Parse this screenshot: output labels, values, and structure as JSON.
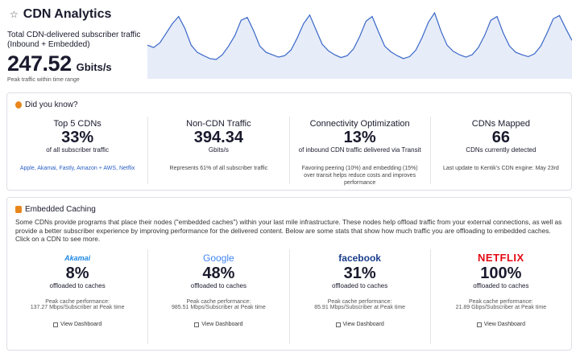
{
  "header": {
    "title": "CDN Analytics"
  },
  "summary": {
    "label": "Total CDN-delivered subscriber traffic",
    "sublabel": "(Inbound + Embedded)",
    "value": "247.52",
    "unit": "Gbits/s",
    "note": "Peak traffic within time range",
    "sparkline": [
      180,
      175,
      185,
      205,
      225,
      240,
      215,
      180,
      165,
      158,
      152,
      150,
      160,
      178,
      200,
      232,
      238,
      210,
      178,
      165,
      160,
      155,
      158,
      170,
      195,
      225,
      243,
      212,
      182,
      168,
      160,
      154,
      158,
      172,
      198,
      230,
      240,
      208,
      178,
      166,
      158,
      152,
      156,
      170,
      196,
      228,
      247.52,
      210,
      180,
      167,
      160,
      155,
      160,
      175,
      200,
      232,
      240,
      205,
      178,
      165,
      160,
      156,
      162,
      178,
      205,
      235,
      242,
      215,
      190
    ]
  },
  "did_you_know": {
    "title": "Did you know?",
    "cards": [
      {
        "title": "Top 5 CDNs",
        "value": "33%",
        "caption": "of all subscriber traffic",
        "detail": "Apple, Akamai, Fastly, Amazon + AWS, Netflix"
      },
      {
        "title": "Non-CDN Traffic",
        "value": "394.34",
        "caption": "Gbits/s",
        "detail": "Represents 61% of all subscriber traffic"
      },
      {
        "title": "Connectivity Optimization",
        "value": "13%",
        "caption": "of inbound CDN traffic delivered via Transit",
        "detail": "Favoring peering (10%) and embedding (15%) over transit helps reduce costs and improves performance"
      },
      {
        "title": "CDNs Mapped",
        "value": "66",
        "caption": "CDNs currently detected",
        "detail": "Last update to Kentik's CDN engine: May 23rd"
      }
    ]
  },
  "embedded": {
    "title": "Embedded Caching",
    "description": "Some CDNs provide programs that place their nodes (\"embedded caches\") within your last mile infrastructure. These nodes help offload traffic from your external connections, as well as provide a better subscriber experience by improving performance for the delivered content. Below are some stats that show how much traffic you are offloading to embedded caches. Click on a CDN to see more.",
    "cdns": [
      {
        "name": "Akamai",
        "value": "8%",
        "caption": "offloaded to caches",
        "perf_label": "Peak cache performance:",
        "perf": "137.27 Mbps/Subscriber at Peak time",
        "action": "View Dashboard"
      },
      {
        "name": "Google",
        "value": "48%",
        "caption": "offloaded to caches",
        "perf_label": "Peak cache performance:",
        "perf": "985.51 Mbps/Subscriber at Peak time",
        "action": "View Dashboard"
      },
      {
        "name": "facebook",
        "value": "31%",
        "caption": "offloaded to caches",
        "perf_label": "Peak cache performance:",
        "perf": "85.91 Mbps/Subscriber at Peak time",
        "action": "View Dashboard"
      },
      {
        "name": "NETFLIX",
        "value": "100%",
        "caption": "offloaded to caches",
        "perf_label": "Peak cache performance:",
        "perf": "21.89 Gbps/Subscriber at Peak time",
        "action": "View Dashboard"
      }
    ]
  }
}
